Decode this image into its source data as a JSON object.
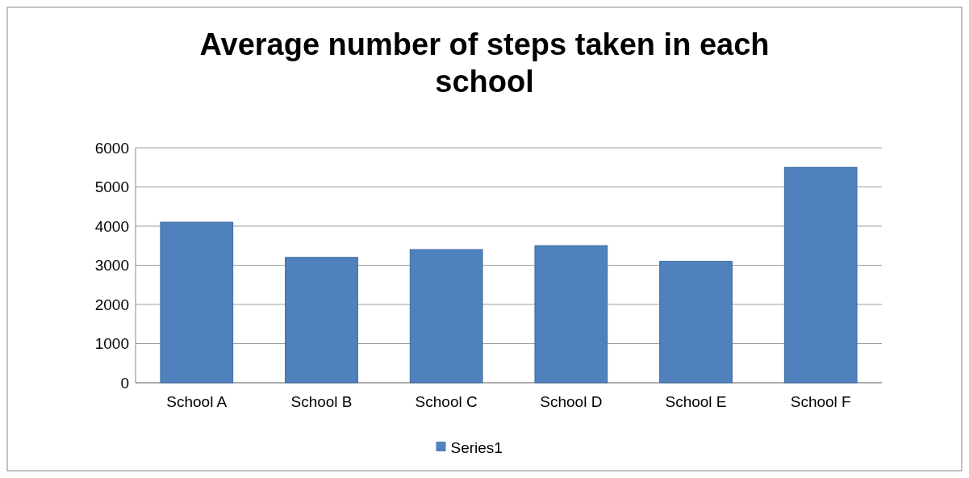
{
  "chart_data": {
    "type": "bar",
    "title": "Average number of steps taken in each school",
    "categories": [
      "School A",
      "School B",
      "School C",
      "School D",
      "School E",
      "School F"
    ],
    "series": [
      {
        "name": "Series1",
        "color": "#4f81bd",
        "values": [
          4100,
          3200,
          3400,
          3500,
          3100,
          5500
        ]
      }
    ],
    "ylim": [
      0,
      6000
    ],
    "yticks": [
      0,
      1000,
      2000,
      3000,
      4000,
      5000,
      6000
    ],
    "grid": "y",
    "legend": "bottom"
  }
}
